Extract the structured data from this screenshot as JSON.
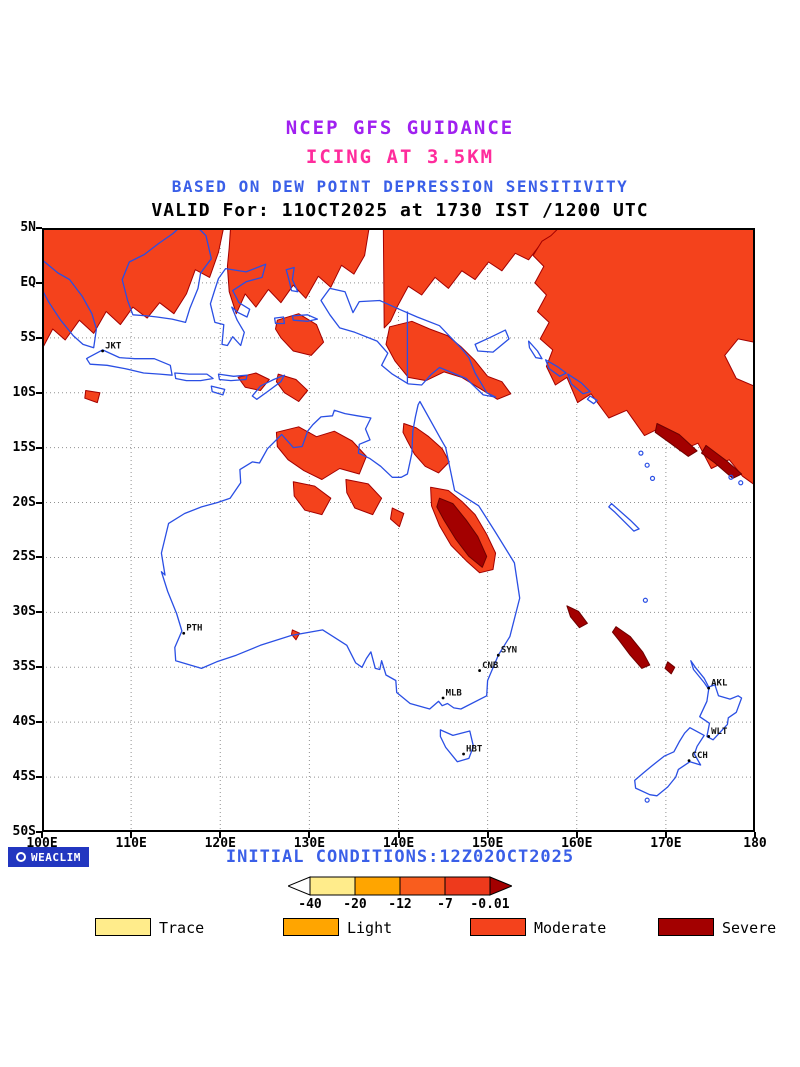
{
  "header": {
    "line1": "NCEP GFS GUIDANCE",
    "line2": "ICING AT 3.5KM",
    "line3": "BASED ON DEW POINT DEPRESSION SENSITIVITY",
    "line4": "VALID For: 11OCT2025 at 1730 IST /1200 UTC"
  },
  "footer": {
    "brand": "WEACLIM",
    "initial_conditions": "INITIAL CONDITIONS:12Z02OCT2025"
  },
  "theme": {
    "title1": "#a020f0",
    "title2": "#ff2c9c",
    "title3": "#3a5fe8",
    "initcond": "#3a5fe8",
    "grid": "#909090",
    "frame": "#000000"
  },
  "chart_data": {
    "type": "map",
    "title": "NCEP GFS guidance, icing at 3.5 km, dew point depression sensitivity",
    "valid": "11OCT2025 1730 IST / 1200 UTC",
    "initial_conditions": "12Z02OCT2025",
    "lon_range": [
      100,
      180
    ],
    "lat_range": [
      -50,
      5
    ],
    "x_ticks": [
      {
        "label": "100E",
        "lon": 100
      },
      {
        "label": "110E",
        "lon": 110
      },
      {
        "label": "120E",
        "lon": 120
      },
      {
        "label": "130E",
        "lon": 130
      },
      {
        "label": "140E",
        "lon": 140
      },
      {
        "label": "150E",
        "lon": 150
      },
      {
        "label": "160E",
        "lon": 160
      },
      {
        "label": "170E",
        "lon": 170
      },
      {
        "label": "180",
        "lon": 180
      }
    ],
    "y_ticks": [
      {
        "label": "5N",
        "lat": 5
      },
      {
        "label": "EQ",
        "lat": 0
      },
      {
        "label": "5S",
        "lat": -5
      },
      {
        "label": "10S",
        "lat": -10
      },
      {
        "label": "15S",
        "lat": -15
      },
      {
        "label": "20S",
        "lat": -20
      },
      {
        "label": "25S",
        "lat": -25
      },
      {
        "label": "30S",
        "lat": -30
      },
      {
        "label": "35S",
        "lat": -35
      },
      {
        "label": "40S",
        "lat": -40
      },
      {
        "label": "45S",
        "lat": -45
      },
      {
        "label": "50S",
        "lat": -50
      }
    ],
    "cities": [
      {
        "code": "JKT",
        "lon": 106.8,
        "lat": -6.2
      },
      {
        "code": "PTH",
        "lon": 115.9,
        "lat": -31.9
      },
      {
        "code": "SYN",
        "lon": 151.2,
        "lat": -33.9
      },
      {
        "code": "CNB",
        "lon": 149.1,
        "lat": -35.3
      },
      {
        "code": "MLB",
        "lon": 145.0,
        "lat": -37.8
      },
      {
        "code": "HBT",
        "lon": 147.3,
        "lat": -42.9
      },
      {
        "code": "AKL",
        "lon": 174.8,
        "lat": -36.9
      },
      {
        "code": "WLT",
        "lon": 174.8,
        "lat": -41.3
      },
      {
        "code": "CCH",
        "lon": 172.6,
        "lat": -43.5
      }
    ],
    "colors": {
      "moderate": "#f4421c",
      "moderate_outline": "#a30000",
      "severe": "#a30000",
      "severe_outline": "#6e0000",
      "coast": "#2a4fe4"
    },
    "icing_regions": [
      {
        "severity": "moderate",
        "points": [
          [
            99.5,
            5.5
          ],
          [
            120.5,
            5.5
          ],
          [
            119.8,
            2.8
          ],
          [
            118.8,
            0.5
          ],
          [
            117.2,
            1.2
          ],
          [
            116.2,
            -1.0
          ],
          [
            114.8,
            -2.8
          ],
          [
            113.2,
            -1.8
          ],
          [
            111.8,
            -3.2
          ],
          [
            110.2,
            -2.2
          ],
          [
            108.8,
            -3.8
          ],
          [
            107.2,
            -2.6
          ],
          [
            105.8,
            -4.6
          ],
          [
            104.2,
            -3.4
          ],
          [
            102.6,
            -5.2
          ],
          [
            101.2,
            -4.2
          ],
          [
            99.5,
            -6.8
          ]
        ]
      },
      {
        "severity": "moderate",
        "points": [
          [
            121.2,
            5.5
          ],
          [
            136.8,
            5.5
          ],
          [
            136.2,
            2.5
          ],
          [
            135.0,
            0.8
          ],
          [
            133.6,
            1.6
          ],
          [
            132.4,
            -0.4
          ],
          [
            131.0,
            0.6
          ],
          [
            129.6,
            -1.4
          ],
          [
            128.2,
            -0.2
          ],
          [
            126.8,
            -1.8
          ],
          [
            125.4,
            -0.6
          ],
          [
            124.0,
            -2.2
          ],
          [
            122.8,
            -1.0
          ],
          [
            121.8,
            -2.8
          ],
          [
            121.0,
            -0.8
          ],
          [
            120.8,
            1.5
          ],
          [
            121.0,
            3.2
          ]
        ]
      },
      {
        "severity": "moderate",
        "points": [
          [
            126.4,
            -3.4
          ],
          [
            128.8,
            -2.8
          ],
          [
            130.8,
            -3.8
          ],
          [
            131.6,
            -5.4
          ],
          [
            130.2,
            -6.6
          ],
          [
            128.2,
            -6.2
          ],
          [
            126.8,
            -5.0
          ],
          [
            126.2,
            -4.2
          ]
        ]
      },
      {
        "severity": "moderate",
        "points": [
          [
            138.3,
            5.5
          ],
          [
            158.2,
            5.5
          ],
          [
            157.6,
            3.2
          ],
          [
            156.1,
            3.7
          ],
          [
            154.6,
            2.1
          ],
          [
            153.1,
            2.7
          ],
          [
            151.6,
            1.1
          ],
          [
            150.1,
            1.9
          ],
          [
            148.6,
            0.3
          ],
          [
            147.1,
            1.1
          ],
          [
            145.6,
            -0.5
          ],
          [
            144.1,
            0.5
          ],
          [
            142.6,
            -1.1
          ],
          [
            141.1,
            -0.3
          ],
          [
            139.9,
            -2.1
          ],
          [
            139.1,
            -3.5
          ],
          [
            138.4,
            -4.1
          ]
        ]
      },
      {
        "severity": "moderate",
        "points": [
          [
            139.0,
            -4.0
          ],
          [
            141.5,
            -3.5
          ],
          [
            143.5,
            -4.2
          ],
          [
            145.5,
            -4.8
          ],
          [
            147.0,
            -5.8
          ],
          [
            148.5,
            -7.0
          ],
          [
            150.0,
            -8.5
          ],
          [
            151.6,
            -9.0
          ],
          [
            152.6,
            -10.1
          ],
          [
            151.1,
            -10.6
          ],
          [
            149.1,
            -9.6
          ],
          [
            147.1,
            -8.6
          ],
          [
            145.1,
            -8.1
          ],
          [
            143.1,
            -8.9
          ],
          [
            141.1,
            -8.6
          ],
          [
            139.6,
            -7.1
          ],
          [
            138.6,
            -5.6
          ]
        ]
      },
      {
        "severity": "moderate",
        "points": [
          [
            158.6,
            5.5
          ],
          [
            180.5,
            5.5
          ],
          [
            180.5,
            -5.5
          ],
          [
            178.1,
            -5.1
          ],
          [
            176.6,
            -6.6
          ],
          [
            177.9,
            -8.7
          ],
          [
            180.5,
            -9.6
          ],
          [
            180.5,
            -18.7
          ],
          [
            178.6,
            -17.6
          ],
          [
            177.1,
            -16.1
          ],
          [
            175.1,
            -16.9
          ],
          [
            173.6,
            -14.6
          ],
          [
            171.6,
            -15.3
          ],
          [
            169.6,
            -13.1
          ],
          [
            167.6,
            -13.9
          ],
          [
            165.6,
            -11.6
          ],
          [
            163.6,
            -12.3
          ],
          [
            161.6,
            -10.1
          ],
          [
            160.1,
            -10.9
          ],
          [
            158.9,
            -8.6
          ],
          [
            157.6,
            -9.3
          ],
          [
            156.6,
            -7.6
          ],
          [
            157.3,
            -6.1
          ],
          [
            155.9,
            -5.1
          ],
          [
            156.9,
            -3.6
          ],
          [
            155.6,
            -2.6
          ],
          [
            156.6,
            -1.1
          ],
          [
            155.3,
            0.0
          ],
          [
            156.3,
            1.5
          ],
          [
            155.1,
            2.5
          ],
          [
            156.1,
            3.8
          ],
          [
            157.1,
            4.3
          ]
        ]
      },
      {
        "severity": "moderate",
        "points": [
          [
            122.0,
            -8.6
          ],
          [
            124.0,
            -8.2
          ],
          [
            125.5,
            -8.8
          ],
          [
            124.5,
            -9.8
          ],
          [
            122.8,
            -9.5
          ]
        ]
      },
      {
        "severity": "moderate",
        "points": [
          [
            126.5,
            -8.3
          ],
          [
            128.5,
            -8.8
          ],
          [
            129.8,
            -9.8
          ],
          [
            128.8,
            -10.8
          ],
          [
            127.2,
            -10.0
          ],
          [
            126.3,
            -9.0
          ]
        ]
      },
      {
        "severity": "moderate",
        "points": [
          [
            104.9,
            -9.8
          ],
          [
            106.5,
            -10.0
          ],
          [
            106.2,
            -10.9
          ],
          [
            104.8,
            -10.5
          ]
        ]
      },
      {
        "severity": "moderate",
        "points": [
          [
            126.3,
            -13.6
          ],
          [
            128.8,
            -13.1
          ],
          [
            130.8,
            -14.0
          ],
          [
            132.8,
            -13.5
          ],
          [
            134.8,
            -14.4
          ],
          [
            136.4,
            -15.8
          ],
          [
            135.6,
            -17.4
          ],
          [
            133.4,
            -16.9
          ],
          [
            131.4,
            -17.9
          ],
          [
            129.4,
            -17.1
          ],
          [
            127.6,
            -16.1
          ],
          [
            126.4,
            -14.9
          ]
        ]
      },
      {
        "severity": "moderate",
        "points": [
          [
            128.2,
            -18.1
          ],
          [
            130.6,
            -18.5
          ],
          [
            132.4,
            -19.6
          ],
          [
            131.4,
            -21.1
          ],
          [
            129.5,
            -20.7
          ],
          [
            128.3,
            -19.4
          ]
        ]
      },
      {
        "severity": "moderate",
        "points": [
          [
            134.1,
            -17.9
          ],
          [
            136.6,
            -18.3
          ],
          [
            138.1,
            -19.6
          ],
          [
            137.1,
            -21.1
          ],
          [
            135.1,
            -20.5
          ],
          [
            134.2,
            -19.1
          ]
        ]
      },
      {
        "severity": "moderate",
        "points": [
          [
            139.3,
            -20.5
          ],
          [
            140.6,
            -21.0
          ],
          [
            140.1,
            -22.2
          ],
          [
            139.1,
            -21.5
          ]
        ]
      },
      {
        "severity": "moderate",
        "points": [
          [
            140.6,
            -12.8
          ],
          [
            142.0,
            -13.2
          ],
          [
            143.4,
            -14.0
          ],
          [
            144.9,
            -15.1
          ],
          [
            145.7,
            -16.3
          ],
          [
            144.5,
            -17.3
          ],
          [
            143.0,
            -16.7
          ],
          [
            141.8,
            -15.6
          ],
          [
            141.0,
            -14.4
          ],
          [
            140.5,
            -13.6
          ]
        ]
      },
      {
        "severity": "moderate",
        "points": [
          [
            143.6,
            -18.6
          ],
          [
            145.6,
            -18.9
          ],
          [
            147.1,
            -19.9
          ],
          [
            148.6,
            -21.1
          ],
          [
            149.9,
            -22.9
          ],
          [
            150.9,
            -24.6
          ],
          [
            150.6,
            -26.1
          ],
          [
            149.1,
            -26.4
          ],
          [
            147.6,
            -25.3
          ],
          [
            145.9,
            -23.9
          ],
          [
            144.6,
            -22.1
          ],
          [
            143.7,
            -20.3
          ]
        ]
      },
      {
        "severity": "moderate",
        "points": [
          [
            128.1,
            -31.6
          ],
          [
            128.9,
            -31.9
          ],
          [
            128.5,
            -32.5
          ],
          [
            128.0,
            -32.0
          ]
        ]
      },
      {
        "severity": "severe",
        "points": [
          [
            144.6,
            -19.6
          ],
          [
            146.1,
            -20.1
          ],
          [
            147.6,
            -21.6
          ],
          [
            148.9,
            -23.1
          ],
          [
            149.9,
            -24.9
          ],
          [
            149.4,
            -25.9
          ],
          [
            147.9,
            -24.9
          ],
          [
            146.4,
            -23.3
          ],
          [
            145.1,
            -21.6
          ],
          [
            144.3,
            -20.4
          ]
        ]
      },
      {
        "severity": "severe",
        "points": [
          [
            158.9,
            -29.4
          ],
          [
            160.2,
            -29.9
          ],
          [
            161.2,
            -31.0
          ],
          [
            160.3,
            -31.4
          ],
          [
            159.3,
            -30.4
          ]
        ]
      },
      {
        "severity": "severe",
        "points": [
          [
            164.4,
            -31.3
          ],
          [
            166.0,
            -32.2
          ],
          [
            167.4,
            -33.6
          ],
          [
            168.2,
            -34.8
          ],
          [
            167.3,
            -35.1
          ],
          [
            166.0,
            -33.9
          ],
          [
            164.8,
            -32.6
          ],
          [
            164.0,
            -31.8
          ]
        ]
      },
      {
        "severity": "severe",
        "points": [
          [
            170.2,
            -34.5
          ],
          [
            171.0,
            -35.0
          ],
          [
            170.6,
            -35.6
          ],
          [
            169.9,
            -35.1
          ]
        ]
      },
      {
        "severity": "severe",
        "points": [
          [
            169.0,
            -12.8
          ],
          [
            171.5,
            -13.8
          ],
          [
            173.5,
            -15.3
          ],
          [
            172.5,
            -15.8
          ],
          [
            170.5,
            -14.6
          ],
          [
            168.8,
            -13.6
          ]
        ]
      },
      {
        "severity": "severe",
        "points": [
          [
            174.5,
            -14.8
          ],
          [
            176.8,
            -16.2
          ],
          [
            178.5,
            -17.4
          ],
          [
            177.5,
            -17.8
          ],
          [
            175.5,
            -16.4
          ],
          [
            174.0,
            -15.5
          ]
        ]
      }
    ],
    "colorbar": {
      "values": [
        "-40",
        "-20",
        "-12",
        "-7",
        "-0.01"
      ],
      "segments": [
        "#ffec8b",
        "#ffa500",
        "#f95d1e",
        "#ee3a1c"
      ],
      "left_arrow": "#ffffff",
      "right_arrow": "#a30000"
    },
    "legend": [
      {
        "label": "Trace",
        "color": "#ffec8b"
      },
      {
        "label": "Light",
        "color": "#ffa500"
      },
      {
        "label": "Moderate",
        "color": "#f4421c"
      },
      {
        "label": "Severe",
        "color": "#a30000"
      }
    ]
  }
}
